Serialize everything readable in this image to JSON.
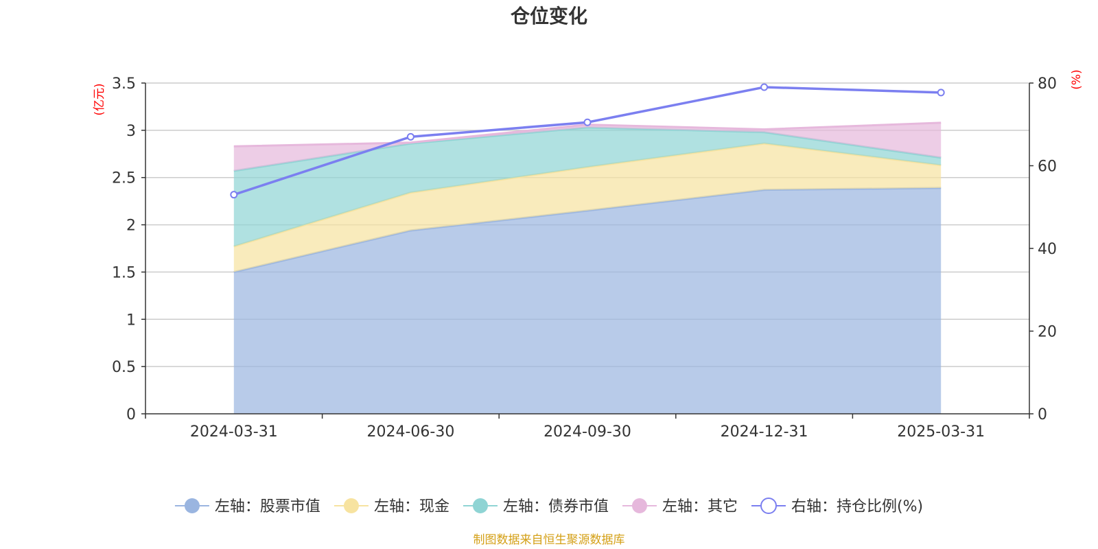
{
  "chart_data": {
    "type": "area",
    "title": "仓位变化",
    "categories": [
      "2024-03-31",
      "2024-06-30",
      "2024-09-30",
      "2024-12-31",
      "2025-03-31"
    ],
    "left_axis": {
      "unit": "(亿元)",
      "ylim": [
        0,
        3.5
      ],
      "ticks": [
        "0",
        "0.5",
        "1",
        "1.5",
        "2",
        "2.5",
        "3",
        "3.5"
      ]
    },
    "right_axis": {
      "unit": "(%)",
      "ylim": [
        0,
        80
      ],
      "ticks": [
        "0",
        "20",
        "40",
        "60",
        "80"
      ]
    },
    "stack_series": [
      {
        "name": "左轴：股票市值",
        "color": "#9ab5e0",
        "values": [
          1.5,
          1.94,
          2.15,
          2.37,
          2.39
        ]
      },
      {
        "name": "左轴：现金",
        "color": "#f7e3a0",
        "values": [
          0.27,
          0.4,
          0.46,
          0.49,
          0.24
        ]
      },
      {
        "name": "左轴：债券市值",
        "color": "#8fd4d4",
        "values": [
          0.8,
          0.52,
          0.42,
          0.12,
          0.08
        ]
      },
      {
        "name": "左轴：其它",
        "color": "#e6b8dc",
        "values": [
          0.26,
          0.01,
          0.03,
          0.03,
          0.37
        ]
      }
    ],
    "line_series": {
      "name": "右轴：持仓比例(%)",
      "color": "#7b7ff0",
      "values": [
        53.0,
        67.0,
        70.5,
        79.0,
        77.7
      ]
    },
    "grid": true,
    "legend_position": "bottom",
    "source": "制图数据来自恒生聚源数据库"
  }
}
